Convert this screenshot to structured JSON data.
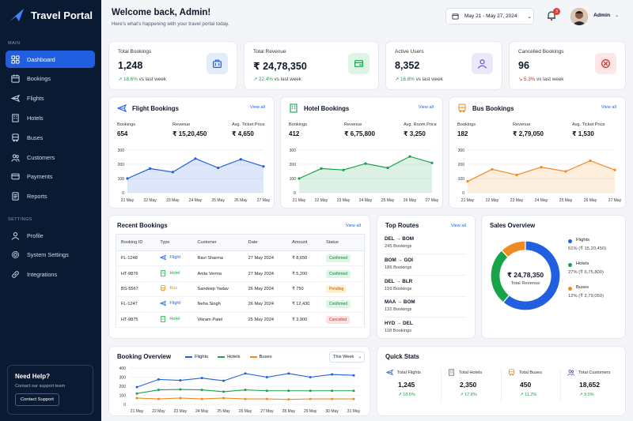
{
  "app": {
    "title": "Travel Portal"
  },
  "sidebar": {
    "main_label": "MAIN",
    "settings_label": "SETTINGS",
    "items": [
      {
        "label": "Dashboard",
        "icon": "grid-icon",
        "active": true
      },
      {
        "label": "Bookings",
        "icon": "calendar-icon"
      },
      {
        "label": "Flights",
        "icon": "plane-icon"
      },
      {
        "label": "Hotels",
        "icon": "building-icon"
      },
      {
        "label": "Buses",
        "icon": "bus-icon"
      },
      {
        "label": "Customers",
        "icon": "users-icon"
      },
      {
        "label": "Payments",
        "icon": "card-icon"
      },
      {
        "label": "Reports",
        "icon": "report-icon"
      }
    ],
    "settings_items": [
      {
        "label": "Profile",
        "icon": "user-icon"
      },
      {
        "label": "System Settings",
        "icon": "gear-icon"
      },
      {
        "label": "Integrations",
        "icon": "link-icon"
      }
    ],
    "help": {
      "title": "Need Help?",
      "subtitle": "Contact our support team",
      "button": "Contact Support"
    }
  },
  "header": {
    "title": "Welcome back, Admin!",
    "subtitle": "Here's what's happening with your travel portal today.",
    "date_range": "May 21 - May 27, 2024",
    "notifications": "3",
    "user": "Admin"
  },
  "kpis": [
    {
      "title": "Total Bookings",
      "value": "1,248",
      "delta": "18.6%",
      "direction": "up",
      "suffix": "vs last week",
      "icon": "briefcase-icon",
      "tint": "#e3ecfb",
      "color": "#1f5fe0"
    },
    {
      "title": "Total Revenue",
      "value": "₹ 24,78,350",
      "delta": "22.4%",
      "direction": "up",
      "suffix": "vs last week",
      "icon": "wallet-icon",
      "tint": "#def5e6",
      "color": "#16a34a"
    },
    {
      "title": "Active Users",
      "value": "8,352",
      "delta": "16.8%",
      "direction": "up",
      "suffix": "vs last week",
      "icon": "user-icon",
      "tint": "#ece8fb",
      "color": "#6d4ad8"
    },
    {
      "title": "Cancelled Bookings",
      "value": "96",
      "delta": "5.3%",
      "direction": "down",
      "suffix": "vs last week",
      "icon": "x-circle-icon",
      "tint": "#fde6e6",
      "color": "#dc2626"
    }
  ],
  "booking_cards": [
    {
      "title": "Flight Bookings",
      "icon": "plane-icon",
      "color": "#1f5fe0",
      "view_all": "View all",
      "stats": [
        {
          "label": "Bookings",
          "value": "654"
        },
        {
          "label": "Revenue",
          "value": "₹ 15,20,450"
        },
        {
          "label": "Avg. Ticket Price",
          "value": "₹ 4,650"
        }
      ]
    },
    {
      "title": "Hotel Bookings",
      "icon": "building-icon",
      "color": "#16a34a",
      "view_all": "View all",
      "stats": [
        {
          "label": "Bookings",
          "value": "412"
        },
        {
          "label": "Revenue",
          "value": "₹ 6,75,800"
        },
        {
          "label": "Avg. Room Price",
          "value": "₹ 3,250"
        }
      ]
    },
    {
      "title": "Bus Bookings",
      "icon": "bus-icon",
      "color": "#f08a24",
      "view_all": "View all",
      "stats": [
        {
          "label": "Bookings",
          "value": "182"
        },
        {
          "label": "Revenue",
          "value": "₹ 2,79,050"
        },
        {
          "label": "Avg. Ticket Price",
          "value": "₹ 1,530"
        }
      ]
    }
  ],
  "chart_data": [
    {
      "type": "area",
      "categories": [
        "21 May",
        "22 May",
        "23 May",
        "24 May",
        "25 May",
        "26 May",
        "27 May"
      ],
      "values": [
        100,
        170,
        145,
        240,
        175,
        235,
        185
      ],
      "ylim": [
        0,
        300
      ],
      "yticks": [
        0,
        100,
        200,
        300
      ]
    },
    {
      "type": "area",
      "categories": [
        "21 May",
        "22 May",
        "23 May",
        "24 May",
        "25 May",
        "26 May",
        "27 May"
      ],
      "values": [
        100,
        170,
        160,
        205,
        175,
        255,
        210
      ],
      "ylim": [
        0,
        300
      ],
      "yticks": [
        0,
        100,
        200,
        300
      ]
    },
    {
      "type": "area",
      "categories": [
        "21 May",
        "22 May",
        "23 May",
        "24 May",
        "25 May",
        "26 May",
        "27 May"
      ],
      "values": [
        80,
        165,
        125,
        180,
        150,
        225,
        160
      ],
      "ylim": [
        0,
        300
      ],
      "yticks": [
        0,
        100,
        200,
        300
      ]
    },
    {
      "type": "line",
      "categories": [
        "21 May",
        "22 May",
        "23 May",
        "24 May",
        "25 May",
        "26 May",
        "27 May",
        "28 May",
        "29 May",
        "30 May",
        "31 May"
      ],
      "series": [
        {
          "name": "Flights",
          "values": [
            190,
            275,
            265,
            290,
            260,
            340,
            300,
            340,
            300,
            330,
            320
          ]
        },
        {
          "name": "Hotels",
          "values": [
            120,
            160,
            165,
            160,
            140,
            160,
            150,
            150,
            150,
            150,
            150
          ]
        },
        {
          "name": "Buses",
          "values": [
            70,
            60,
            70,
            60,
            70,
            60,
            60,
            55,
            60,
            60,
            60
          ]
        }
      ],
      "ylim": [
        0,
        400
      ],
      "yticks": [
        0,
        100,
        200,
        300,
        400
      ]
    },
    {
      "type": "pie",
      "slices": [
        {
          "name": "Flights",
          "value": 61
        },
        {
          "name": "Hotels",
          "value": 27
        },
        {
          "name": "Buses",
          "value": 12
        }
      ]
    }
  ],
  "recent_bookings": {
    "title": "Recent Bookings",
    "view_all": "View all",
    "columns": [
      "Booking ID",
      "Type",
      "Customer",
      "Date",
      "Amount",
      "Status"
    ],
    "rows": [
      {
        "id": "FL-1248",
        "type": "Flight",
        "customer": "Ravi Sharma",
        "date": "27 May 2024",
        "amount": "₹ 8,650",
        "status": "Confirmed",
        "st": "ok",
        "tc": "#1f5fe0"
      },
      {
        "id": "HT-9876",
        "type": "Hotel",
        "customer": "Anita Verma",
        "date": "27 May 2024",
        "amount": "₹ 5,200",
        "status": "Confirmed",
        "st": "ok",
        "tc": "#16a34a"
      },
      {
        "id": "BS-5567",
        "type": "Bus",
        "customer": "Sandeep Yadav",
        "date": "26 May 2024",
        "amount": "₹ 750",
        "status": "Pending",
        "st": "pend",
        "tc": "#f08a24"
      },
      {
        "id": "FL-1247",
        "type": "Flight",
        "customer": "Neha Singh",
        "date": "26 May 2024",
        "amount": "₹ 12,430",
        "status": "Confirmed",
        "st": "ok",
        "tc": "#1f5fe0"
      },
      {
        "id": "HT-9875",
        "type": "Hotel",
        "customer": "Vikram Patel",
        "date": "25 May 2024",
        "amount": "₹ 3,900",
        "status": "Cancelled",
        "st": "canc",
        "tc": "#16a34a"
      }
    ]
  },
  "top_routes": {
    "title": "Top Routes",
    "view_all": "View all",
    "routes": [
      {
        "route": "DEL → BOM",
        "count": "245 Bookings"
      },
      {
        "route": "BOM → GOI",
        "count": "186 Bookings"
      },
      {
        "route": "DEL → BLR",
        "count": "159 Bookings"
      },
      {
        "route": "MAA → BOM",
        "count": "132 Bookings"
      },
      {
        "route": "HYD → DEL",
        "count": "118 Bookings"
      }
    ]
  },
  "sales_overview": {
    "title": "Sales Overview",
    "center_value": "₹ 24,78,350",
    "center_label": "Total Revenue",
    "legend": [
      {
        "name": "Flights",
        "detail": "61% (₹ 15,20,450)",
        "color": "#1f5fe0"
      },
      {
        "name": "Hotels",
        "detail": "27% (₹ 6,75,800)",
        "color": "#16a34a"
      },
      {
        "name": "Buses",
        "detail": "12% (₹ 2,79,050)",
        "color": "#f08a24"
      }
    ]
  },
  "booking_overview": {
    "title": "Booking Overview",
    "period": "This Week",
    "legend": [
      "Flights",
      "Hotels",
      "Buses"
    ]
  },
  "quick_stats": {
    "title": "Quick Stats",
    "items": [
      {
        "label": "Total Flights",
        "value": "1,245",
        "delta": "18.6%",
        "icon": "plane-icon",
        "color": "#1f5fe0"
      },
      {
        "label": "Total Hotels",
        "value": "2,350",
        "delta": "17.8%",
        "icon": "building-icon",
        "color": "#16a34a"
      },
      {
        "label": "Total Buses",
        "value": "450",
        "delta": "11.2%",
        "icon": "bus-icon",
        "color": "#f08a24"
      },
      {
        "label": "Total Customers",
        "value": "18,652",
        "delta": "9.5%",
        "icon": "users-icon",
        "color": "#6d4ad8"
      }
    ]
  }
}
